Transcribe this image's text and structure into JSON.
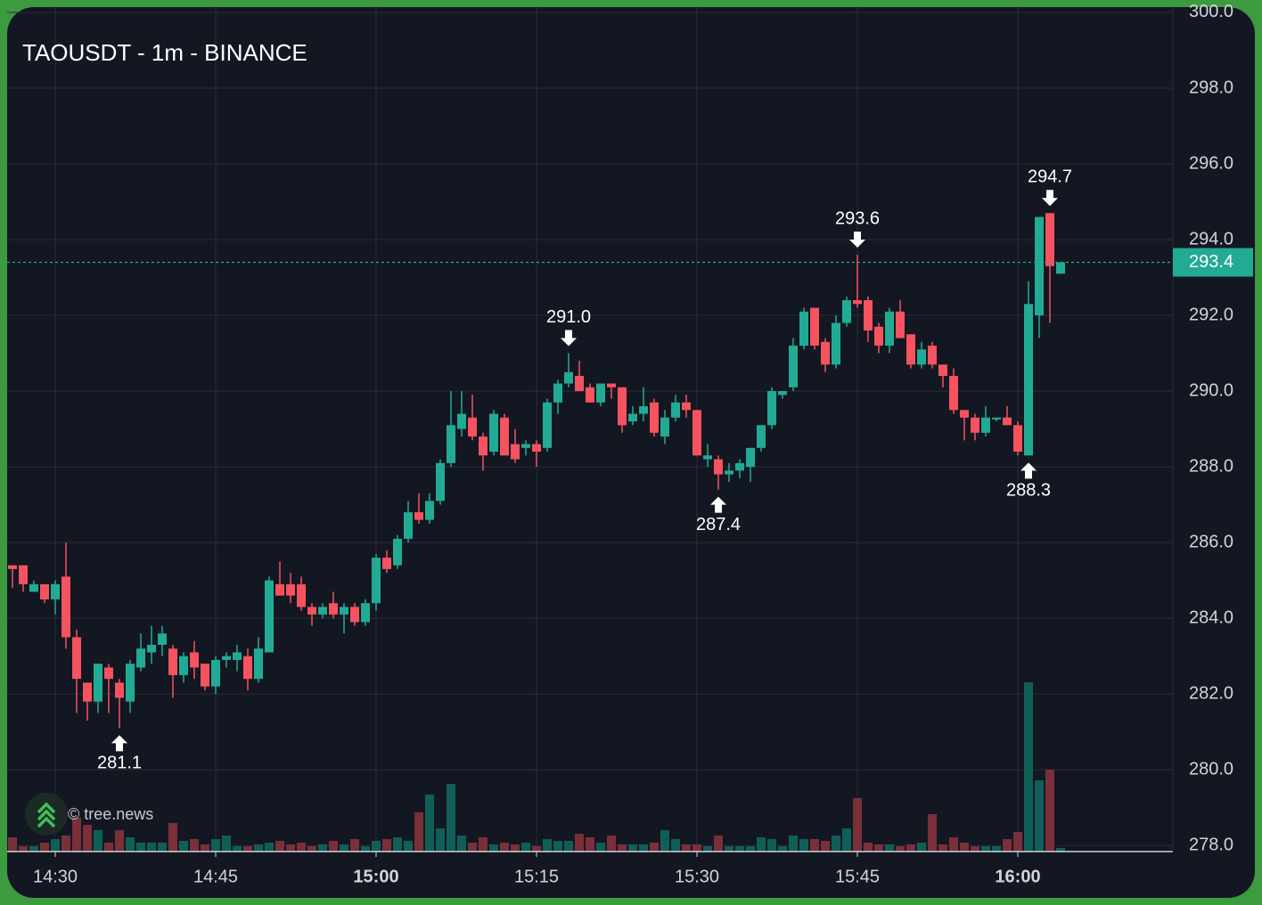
{
  "chart_data": {
    "type": "candlestick",
    "title": "TAOUSDT - 1m - BINANCE",
    "watermark": "© tree.news",
    "x": [
      "14:26",
      "14:27",
      "14:28",
      "14:29",
      "14:30",
      "14:31",
      "14:32",
      "14:33",
      "14:34",
      "14:35",
      "14:36",
      "14:37",
      "14:38",
      "14:39",
      "14:40",
      "14:41",
      "14:42",
      "14:43",
      "14:44",
      "14:45",
      "14:46",
      "14:47",
      "14:48",
      "14:49",
      "14:50",
      "14:51",
      "14:52",
      "14:53",
      "14:54",
      "14:55",
      "14:56",
      "14:57",
      "14:58",
      "14:59",
      "15:00",
      "15:01",
      "15:02",
      "15:03",
      "15:04",
      "15:05",
      "15:06",
      "15:07",
      "15:08",
      "15:09",
      "15:10",
      "15:11",
      "15:12",
      "15:13",
      "15:14",
      "15:15",
      "15:16",
      "15:17",
      "15:18",
      "15:19",
      "15:20",
      "15:21",
      "15:22",
      "15:23",
      "15:24",
      "15:25",
      "15:26",
      "15:27",
      "15:28",
      "15:29",
      "15:30",
      "15:31",
      "15:32",
      "15:33",
      "15:34",
      "15:35",
      "15:36",
      "15:37",
      "15:38",
      "15:39",
      "15:40",
      "15:41",
      "15:42",
      "15:43",
      "15:44",
      "15:45",
      "15:46",
      "15:47",
      "15:48",
      "15:49",
      "15:50",
      "15:51",
      "15:52",
      "15:53",
      "15:54",
      "15:55",
      "15:56",
      "15:57",
      "15:58",
      "15:59",
      "16:00",
      "16:01",
      "16:02",
      "16:03",
      "16:04"
    ],
    "open": [
      285.4,
      285.4,
      284.7,
      284.9,
      284.5,
      285.1,
      283.5,
      282.3,
      281.8,
      282.7,
      282.3,
      281.8,
      282.7,
      283.1,
      283.3,
      283.2,
      282.5,
      283.1,
      282.8,
      282.2,
      282.9,
      282.9,
      283.0,
      282.4,
      283.1,
      284.9,
      284.9,
      284.9,
      284.3,
      284.1,
      284.4,
      284.1,
      284.3,
      283.9,
      284.4,
      285.6,
      285.4,
      286.1,
      286.8,
      286.6,
      287.1,
      288.1,
      289.0,
      289.3,
      288.8,
      288.4,
      289.3,
      288.6,
      288.5,
      288.6,
      288.5,
      289.7,
      290.2,
      290.4,
      290.1,
      289.7,
      290.2,
      290.1,
      289.2,
      289.4,
      289.7,
      288.8,
      289.3,
      289.7,
      289.5,
      288.2,
      288.2,
      287.8,
      287.9,
      288.0,
      288.5,
      289.1,
      289.9,
      290.1,
      291.2,
      292.2,
      291.3,
      290.7,
      291.8,
      292.4,
      292.4,
      291.7,
      291.2,
      292.1,
      291.5,
      290.7,
      291.2,
      290.7,
      290.4,
      289.5,
      289.3,
      288.9,
      289.25,
      289.3,
      289.1,
      288.3,
      292.0,
      294.7,
      293.1
    ],
    "high": [
      285.4,
      285.4,
      285.0,
      284.9,
      285.0,
      286.0,
      283.7,
      282.3,
      282.8,
      282.8,
      282.4,
      282.9,
      283.6,
      283.8,
      283.8,
      283.3,
      283.1,
      283.4,
      282.8,
      283.0,
      283.1,
      283.3,
      283.2,
      283.5,
      285.1,
      285.5,
      285.2,
      285.1,
      284.4,
      284.4,
      284.7,
      284.4,
      284.4,
      284.5,
      285.7,
      285.8,
      286.2,
      287.1,
      287.3,
      287.3,
      288.2,
      290.0,
      290.0,
      289.9,
      288.9,
      289.5,
      289.4,
      289.0,
      288.7,
      288.7,
      289.8,
      290.3,
      291.0,
      290.8,
      290.2,
      290.2,
      290.2,
      290.1,
      289.6,
      290.1,
      289.8,
      289.5,
      289.9,
      289.9,
      289.5,
      288.6,
      288.3,
      288.1,
      288.2,
      288.5,
      289.1,
      290.1,
      290.0,
      291.4,
      292.2,
      292.2,
      291.4,
      292.0,
      292.5,
      293.6,
      292.5,
      291.8,
      292.2,
      292.4,
      291.5,
      291.3,
      291.3,
      290.7,
      290.6,
      289.5,
      289.4,
      289.6,
      289.3,
      289.6,
      289.2,
      292.9,
      294.6,
      294.7,
      293.4
    ],
    "low": [
      284.8,
      284.7,
      284.7,
      284.4,
      284.1,
      283.2,
      281.5,
      281.3,
      281.5,
      281.5,
      281.1,
      281.5,
      282.6,
      282.8,
      283.0,
      281.9,
      282.3,
      282.4,
      282.1,
      282.0,
      282.7,
      282.6,
      282.1,
      282.3,
      283.1,
      284.6,
      284.4,
      284.2,
      283.8,
      284.0,
      284.0,
      283.6,
      283.8,
      283.8,
      284.2,
      285.2,
      285.3,
      286.0,
      286.5,
      286.5,
      287.0,
      288.0,
      288.8,
      288.7,
      287.9,
      288.3,
      288.3,
      288.1,
      288.3,
      288.0,
      288.4,
      289.4,
      290.1,
      290.0,
      289.7,
      289.6,
      289.8,
      288.9,
      289.1,
      289.2,
      288.8,
      288.6,
      289.2,
      289.3,
      288.3,
      288.0,
      287.4,
      287.6,
      287.7,
      287.6,
      288.4,
      289.0,
      289.8,
      290.0,
      291.1,
      291.1,
      290.5,
      290.6,
      291.7,
      292.2,
      291.3,
      291.0,
      291.0,
      291.4,
      290.6,
      290.6,
      290.6,
      290.1,
      289.4,
      288.7,
      288.7,
      288.8,
      289.2,
      289.1,
      288.3,
      288.3,
      291.4,
      291.8,
      293.1
    ],
    "close": [
      285.3,
      284.9,
      284.9,
      284.5,
      284.9,
      283.5,
      282.4,
      281.8,
      282.8,
      282.4,
      281.9,
      282.8,
      283.2,
      283.3,
      283.6,
      282.5,
      283.0,
      282.7,
      282.2,
      282.9,
      283.0,
      283.1,
      282.4,
      283.2,
      285.0,
      284.6,
      284.6,
      284.3,
      284.1,
      284.3,
      284.1,
      284.3,
      283.9,
      284.4,
      285.6,
      285.3,
      286.1,
      286.8,
      286.6,
      287.1,
      288.1,
      289.1,
      289.4,
      288.8,
      288.3,
      289.4,
      288.3,
      288.2,
      288.6,
      288.4,
      289.7,
      290.2,
      290.5,
      290.0,
      289.7,
      290.2,
      290.1,
      289.1,
      289.4,
      289.6,
      288.9,
      289.3,
      289.7,
      289.5,
      288.3,
      288.3,
      287.8,
      287.9,
      288.1,
      288.5,
      289.1,
      290.0,
      290.0,
      291.2,
      292.1,
      291.2,
      290.7,
      291.8,
      292.4,
      292.3,
      291.6,
      291.2,
      292.1,
      291.4,
      290.7,
      291.1,
      290.7,
      290.4,
      289.5,
      289.3,
      288.9,
      289.3,
      289.3,
      289.1,
      288.4,
      292.3,
      294.6,
      293.3,
      293.4
    ],
    "volume": [
      16,
      6,
      6,
      10,
      14,
      18,
      38,
      30,
      24,
      10,
      24,
      16,
      10,
      10,
      10,
      32,
      12,
      14,
      8,
      14,
      18,
      6,
      6,
      8,
      10,
      12,
      8,
      10,
      6,
      8,
      12,
      8,
      14,
      6,
      12,
      14,
      16,
      12,
      44,
      64,
      26,
      76,
      18,
      10,
      16,
      8,
      10,
      8,
      10,
      6,
      14,
      12,
      12,
      20,
      16,
      10,
      18,
      8,
      8,
      8,
      10,
      24,
      14,
      8,
      8,
      6,
      18,
      6,
      6,
      6,
      16,
      14,
      6,
      18,
      14,
      14,
      12,
      18,
      26,
      60,
      10,
      8,
      8,
      6,
      8,
      10,
      42,
      8,
      16,
      10,
      6,
      6,
      6,
      14,
      22,
      190,
      80,
      92,
      4
    ],
    "up_color": "#22ab94",
    "down_color": "#f7525f",
    "up_volume_color": "#0f5f57",
    "down_volume_color": "#7a2f39",
    "ylim": [
      277.84,
      300.14
    ],
    "yticks": [
      {
        "value": 278,
        "label": "278.0"
      },
      {
        "value": 280,
        "label": "280.0"
      },
      {
        "value": 282,
        "label": "282.0"
      },
      {
        "value": 284,
        "label": "284.0"
      },
      {
        "value": 286,
        "label": "286.0"
      },
      {
        "value": 288,
        "label": "288.0"
      },
      {
        "value": 290,
        "label": "290.0"
      },
      {
        "value": 292,
        "label": "292.0"
      },
      {
        "value": 294,
        "label": "294.0"
      },
      {
        "value": 296,
        "label": "296.0"
      },
      {
        "value": 298,
        "label": "298.0"
      },
      {
        "value": 300,
        "label": "300.0"
      }
    ],
    "xticks": [
      "14:30",
      "14:45",
      "15:00",
      "15:15",
      "15:30",
      "15:45",
      "16:00"
    ],
    "grid": true,
    "last_price": {
      "value": 293.4,
      "label": "293.4"
    },
    "annotations": [
      {
        "x": "14:36",
        "value": {
          "value": 281.1,
          "label": "281.1"
        },
        "position": "below"
      },
      {
        "x": "15:18",
        "value": {
          "value": 291.0,
          "label": "291.0"
        },
        "position": "above"
      },
      {
        "x": "15:32",
        "value": {
          "value": 287.4,
          "label": "287.4"
        },
        "position": "below"
      },
      {
        "x": "15:45",
        "value": {
          "value": 293.6,
          "label": "293.6"
        },
        "position": "above"
      },
      {
        "x": "16:01",
        "value": {
          "value": 288.3,
          "label": "288.3"
        },
        "position": "below"
      },
      {
        "x": "16:03",
        "value": {
          "value": 294.7,
          "label": "294.7"
        },
        "position": "above"
      }
    ]
  }
}
